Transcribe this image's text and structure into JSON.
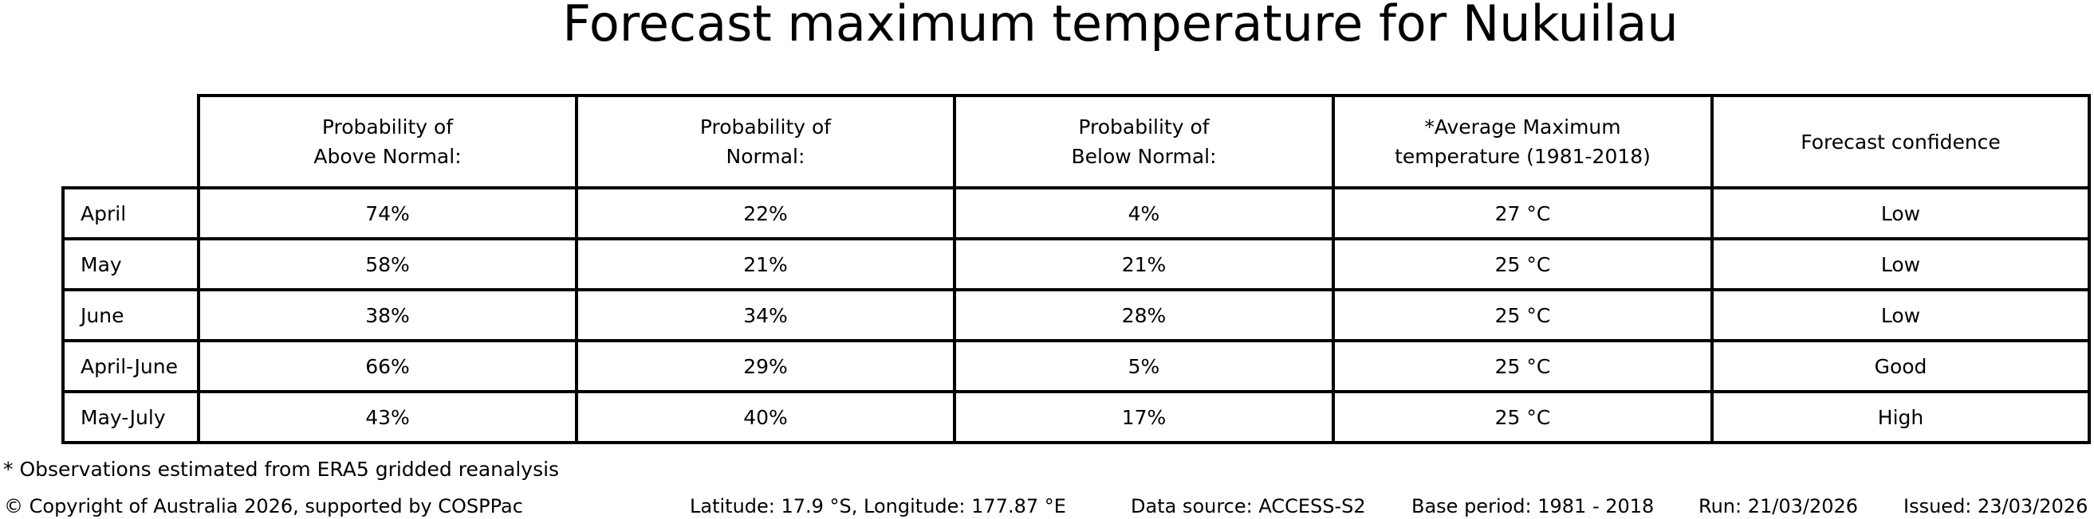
{
  "title": "Forecast maximum temperature for Nukuilau",
  "chart_data": {
    "type": "table",
    "title": "Forecast maximum temperature for Nukuilau",
    "column_headers": [
      "Probability of\nAbove Normal:",
      "Probability of\nNormal:",
      "Probability of\nBelow Normal:",
      "*Average Maximum\ntemperature (1981-2018)",
      "Forecast confidence"
    ],
    "rows": [
      {
        "label": "April",
        "cells": [
          "74%",
          "22%",
          "4%",
          "27 °C",
          "Low"
        ]
      },
      {
        "label": "May",
        "cells": [
          "58%",
          "21%",
          "21%",
          "25 °C",
          "Low"
        ]
      },
      {
        "label": "June",
        "cells": [
          "38%",
          "34%",
          "28%",
          "25 °C",
          "Low"
        ]
      },
      {
        "label": "April-June",
        "cells": [
          "66%",
          "29%",
          "5%",
          "25 °C",
          "Good"
        ]
      },
      {
        "label": "May-July",
        "cells": [
          "43%",
          "40%",
          "17%",
          "25 °C",
          "High"
        ]
      }
    ],
    "probability_values_above_normal": [
      74,
      58,
      38,
      66,
      43
    ],
    "probability_values_normal": [
      22,
      21,
      34,
      29,
      40
    ],
    "probability_values_below_normal": [
      4,
      21,
      28,
      5,
      17
    ],
    "average_max_temperature_c": [
      27,
      25,
      25,
      25,
      25
    ],
    "forecast_confidence": [
      "Low",
      "Low",
      "Low",
      "Good",
      "High"
    ]
  },
  "footnote": "* Observations estimated from ERA5 gridded reanalysis",
  "footer": {
    "copyright": "© Copyright of Australia 2026, supported by COSPPac",
    "location": "Latitude: 17.9 °S, Longitude: 177.87 °E",
    "data_source": "Data source: ACCESS-S2",
    "base_period": "Base period: 1981 - 2018",
    "run": "Run: 21/03/2026",
    "issued": "Issued: 23/03/2026"
  }
}
